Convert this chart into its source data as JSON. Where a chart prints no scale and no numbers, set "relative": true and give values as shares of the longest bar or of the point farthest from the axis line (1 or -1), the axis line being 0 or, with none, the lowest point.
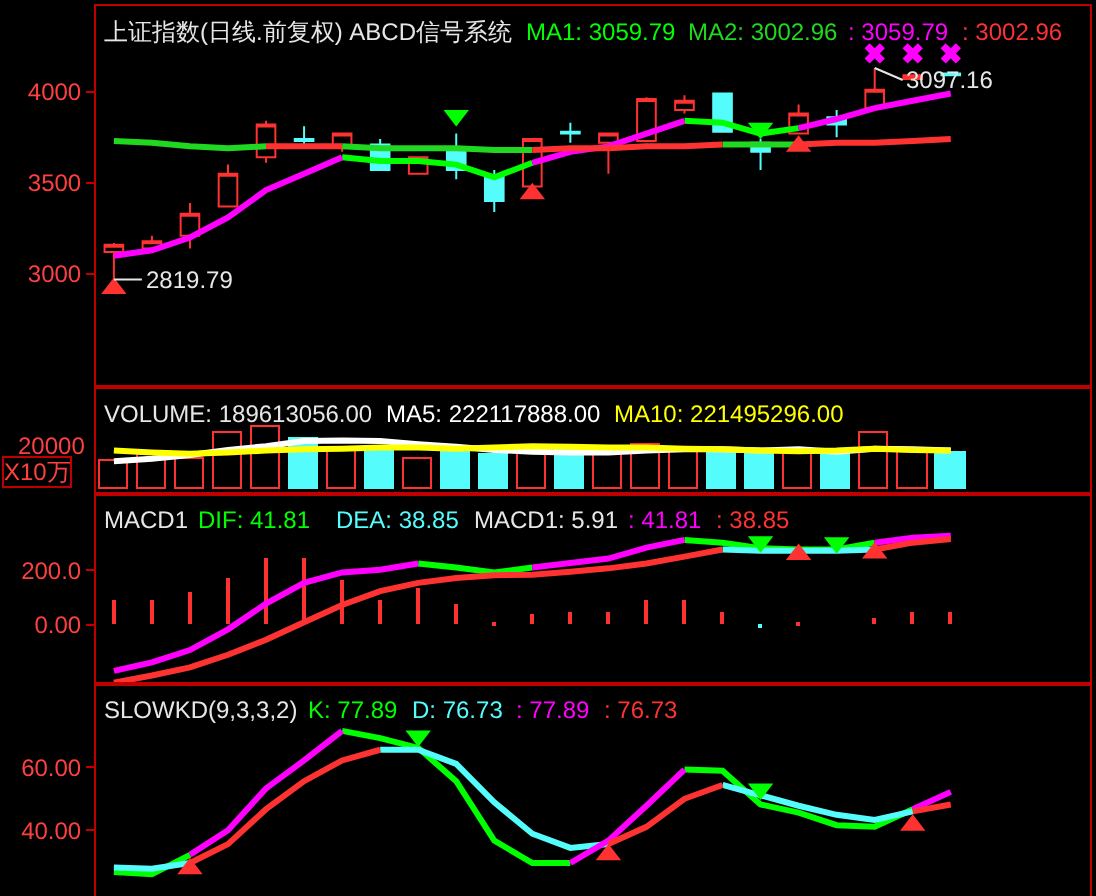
{
  "chart_data": [
    {
      "type": "candlestick",
      "title": "上证指数(日线.前复权) ABCD信号系统",
      "categories": [
        null,
        null,
        null,
        null,
        null,
        null,
        null,
        null,
        null,
        null,
        null,
        null,
        null,
        null,
        null,
        null,
        null,
        null,
        null,
        null,
        null,
        null,
        null
      ],
      "ohlc": [
        [
          3120,
          3170,
          2970,
          3160
        ],
        [
          3140,
          3210,
          3130,
          3180
        ],
        [
          3210,
          3390,
          3140,
          3330
        ],
        [
          3370,
          3600,
          3370,
          3550
        ],
        [
          3640,
          3840,
          3610,
          3820
        ],
        [
          3740,
          3810,
          3690,
          3730
        ],
        [
          3700,
          3770,
          3670,
          3770
        ],
        [
          3710,
          3740,
          3570,
          3570
        ],
        [
          3550,
          3640,
          3550,
          3640
        ],
        [
          3680,
          3770,
          3520,
          3570
        ],
        [
          3540,
          3570,
          3340,
          3400
        ],
        [
          3480,
          3740,
          3480,
          3740
        ],
        [
          3780,
          3830,
          3720,
          3770
        ],
        [
          3720,
          3770,
          3550,
          3770
        ],
        [
          3730,
          3970,
          3730,
          3960
        ],
        [
          3900,
          3980,
          3880,
          3950
        ],
        [
          3990,
          3990,
          3780,
          3780
        ],
        [
          3720,
          3740,
          3570,
          3670
        ],
        [
          3770,
          3930,
          3770,
          3880
        ],
        [
          3860,
          3900,
          3750,
          3820
        ],
        [
          3910,
          4130,
          3910,
          4010
        ],
        [
          4070,
          4090,
          4070,
          4090
        ],
        [
          4100,
          4100,
          4090,
          4090
        ]
      ],
      "colors": [
        "#ff3232",
        "#ff3232",
        "#ff3232",
        "#ff3232",
        "#ff3232",
        "#54fcfc",
        "#ff3232",
        "#54fcfc",
        "#ff3232",
        "#54fcfc",
        "#54fcfc",
        "#ff3232",
        "#54fcfc",
        "#ff3232",
        "#ff3232",
        "#ff3232",
        "#54fcfc",
        "#54fcfc",
        "#ff3232",
        "#54fcfc",
        "#ff3232",
        "#ff3232",
        "#54fcfc"
      ],
      "ylim": [
        2380,
        4470
      ],
      "yticks": [
        3000,
        3500,
        4000
      ],
      "tick_labels": "y",
      "series": [
        {
          "type": "line",
          "name": "MA1: 3059.79",
          "color": "#00ff00",
          "values": [
            null,
            null,
            null,
            null,
            null,
            null,
            3640,
            3620,
            3620,
            3600,
            3530,
            3610,
            null,
            null,
            null,
            3840,
            3830,
            3770,
            3800,
            null,
            null,
            null,
            null
          ]
        },
        {
          "type": "line",
          "name": "MA2: 3002.96",
          "color": "#20d820",
          "values": [
            3730,
            3720,
            3700,
            3690,
            3700,
            null,
            3700,
            3690,
            3690,
            3690,
            3680,
            3680,
            null,
            null,
            null,
            null,
            3710,
            3710,
            3710,
            null,
            null,
            null,
            null
          ]
        },
        {
          "type": "line",
          "name": ": 3059.79",
          "color": "#ff00ff",
          "values": [
            3100,
            3130,
            3200,
            3310,
            3460,
            3550,
            3640,
            null,
            null,
            null,
            null,
            3610,
            3670,
            3700,
            3770,
            3840,
            null,
            null,
            3800,
            3850,
            3910,
            3950,
            3990
          ]
        },
        {
          "type": "line",
          "name": ": 3002.96",
          "color": "#ff3232",
          "values": [
            null,
            null,
            null,
            null,
            3700,
            3700,
            3700,
            null,
            null,
            null,
            null,
            3680,
            3690,
            3690,
            3700,
            3700,
            3710,
            null,
            3710,
            3720,
            3720,
            3730,
            3740
          ]
        },
        {
          "type": "scatter",
          "marker": "triangle",
          "color": "#ff3232",
          "values": [
            2920,
            null,
            null,
            null,
            null,
            null,
            null,
            null,
            null,
            null,
            null,
            3440,
            null,
            null,
            null,
            null,
            null,
            null,
            3700,
            null,
            null,
            null,
            null
          ]
        },
        {
          "type": "scatter",
          "marker": "triangle",
          "color": "#00ff00",
          "values": [
            null,
            null,
            null,
            null,
            null,
            null,
            null,
            null,
            null,
            3870,
            null,
            null,
            null,
            null,
            null,
            null,
            null,
            3800,
            null,
            null,
            null,
            null,
            null
          ]
        },
        {
          "type": "scatter",
          "marker": "cross",
          "color": "#ff00ff",
          "values": [
            null,
            null,
            null,
            null,
            null,
            null,
            null,
            null,
            null,
            null,
            null,
            null,
            null,
            null,
            null,
            null,
            null,
            null,
            null,
            null,
            4210,
            4210,
            4210
          ]
        }
      ],
      "annotations": [
        "2819.79",
        "3097.16"
      ]
    },
    {
      "type": "bar",
      "title": "VOLUME: 189613056.00",
      "ylabel": "X10万",
      "relative": true,
      "tick_labels": false,
      "categories": [
        null,
        null,
        null,
        null,
        null,
        null,
        null,
        null,
        null,
        null,
        null,
        null,
        null,
        null,
        null,
        null,
        null,
        null,
        null,
        null,
        null,
        null,
        null
      ],
      "series": [
        {
          "type": "bar",
          "colors": [
            "#ff3232",
            "#ff3232",
            "#ff3232",
            "#ff3232",
            "#ff3232",
            "#54fcfc",
            "#ff3232",
            "#54fcfc",
            "#ff3232",
            "#54fcfc",
            "#54fcfc",
            "#ff3232",
            "#54fcfc",
            "#ff3232",
            "#ff3232",
            "#ff3232",
            "#54fcfc",
            "#54fcfc",
            "#ff3232",
            "#54fcfc",
            "#ff3232",
            "#ff3232",
            "#54fcfc"
          ],
          "values": [
            0.46,
            0.53,
            0.49,
            0.9,
            1.0,
            0.78,
            0.62,
            0.68,
            0.49,
            0.61,
            0.53,
            0.59,
            0.62,
            0.59,
            0.71,
            0.6,
            0.62,
            0.53,
            0.62,
            0.53,
            0.88,
            0.59,
            0.57
          ]
        },
        {
          "type": "line",
          "name": "MA5: 222117888.00",
          "color": "#ffffff",
          "values": [
            0.44,
            0.48,
            0.54,
            0.62,
            0.68,
            0.76,
            0.77,
            0.76,
            0.71,
            0.67,
            0.62,
            0.59,
            0.58,
            0.58,
            0.61,
            0.63,
            0.63,
            0.61,
            0.63,
            0.59,
            0.64,
            0.63,
            0.61
          ]
        },
        {
          "type": "line",
          "name": "MA10: 221495296.00",
          "color": "#ffff00",
          "values": [
            0.61,
            0.58,
            0.56,
            0.58,
            0.61,
            0.63,
            0.64,
            0.66,
            0.66,
            0.64,
            0.66,
            0.68,
            0.67,
            0.66,
            0.66,
            0.64,
            0.63,
            0.61,
            0.6,
            0.61,
            0.64,
            0.62,
            0.61
          ]
        }
      ],
      "annotations": [
        "20000"
      ]
    },
    {
      "type": "line",
      "title": "MACD1",
      "tick_labels": "y",
      "categories": [
        null,
        null,
        null,
        null,
        null,
        null,
        null,
        null,
        null,
        null,
        null,
        null,
        null,
        null,
        null,
        null,
        null,
        null,
        null,
        null,
        null,
        null,
        null
      ],
      "ylim": [
        -216,
        479
      ],
      "yticks": [
        {
          "value": 200,
          "label": "200.0"
        },
        {
          "value": 0,
          "label": "0.00"
        }
      ],
      "series": [
        {
          "type": "bar",
          "colors": [
            "#ff3232",
            "#ff3232",
            "#ff3232",
            "#ff3232",
            "#ff3232",
            "#ff3232",
            "#ff3232",
            "#ff3232",
            "#ff3232",
            "#ff3232",
            "#ff3232",
            "#ff3232",
            "#ff3232",
            "#ff3232",
            "#ff3232",
            "#ff3232",
            "#ff3232",
            "#54fcfc",
            "#ff3232",
            "#ff3232",
            "#ff3232",
            "#ff3232",
            "#ff3232"
          ],
          "values": [
            89,
            94,
            124,
            175,
            248,
            246,
            165,
            89,
            132,
            76,
            13,
            38,
            51,
            51,
            89,
            89,
            46,
            -5,
            5,
            0,
            25,
            46,
            46
          ]
        },
        {
          "type": "line",
          "name": "DIF: 41.81",
          "color": "#00ff00",
          "values": [
            null,
            null,
            null,
            null,
            null,
            null,
            null,
            null,
            225,
            210,
            192,
            210,
            null,
            null,
            null,
            311,
            301,
            281,
            276,
            276,
            301,
            null,
            null
          ]
        },
        {
          "type": "line",
          "name": "DEA: 38.85",
          "color": "#54fcfc",
          "values": [
            null,
            null,
            null,
            null,
            null,
            null,
            null,
            null,
            null,
            null,
            null,
            null,
            null,
            null,
            null,
            null,
            276,
            271,
            271,
            271,
            276,
            null,
            null
          ]
        },
        {
          "type": "line",
          "name": ": 41.81",
          "color": "#ff00ff",
          "values": [
            -168,
            -137,
            -92,
            -16,
            78,
            154,
            192,
            202,
            225,
            null,
            null,
            210,
            227,
            243,
            283,
            311,
            null,
            null,
            null,
            null,
            301,
            319,
            326
          ]
        },
        {
          "type": "line",
          "name": ": 38.85",
          "color": "#ff3232",
          "values": [
            -211,
            -185,
            -155,
            -109,
            -54,
            10,
            73,
            124,
            154,
            172,
            182,
            184,
            195,
            207,
            225,
            250,
            276,
            null,
            null,
            null,
            276,
            301,
            314
          ]
        },
        {
          "type": "scatter",
          "marker": "triangle",
          "color": "#ff3232",
          "values": [
            null,
            null,
            null,
            null,
            null,
            null,
            null,
            null,
            null,
            null,
            null,
            null,
            null,
            null,
            null,
            null,
            null,
            null,
            258,
            null,
            263,
            null,
            null
          ]
        },
        {
          "type": "scatter",
          "marker": "triangle",
          "color": "#00ff00",
          "values": [
            null,
            null,
            null,
            null,
            null,
            null,
            null,
            null,
            null,
            null,
            null,
            null,
            null,
            null,
            null,
            null,
            null,
            304,
            null,
            301,
            null,
            null,
            null
          ]
        }
      ],
      "annotations": [
        "MACD1: 5.91"
      ]
    },
    {
      "type": "line",
      "title": "SLOWKD(9,3,3,2)",
      "tick_labels": "y",
      "categories": [
        null,
        null,
        null,
        null,
        null,
        null,
        null,
        null,
        null,
        null,
        null,
        null,
        null,
        null,
        null,
        null,
        null,
        null,
        null,
        null,
        null,
        null,
        null
      ],
      "ylim": [
        19.1,
        86.5
      ],
      "yticks": [
        {
          "value": 60,
          "label": "60.00"
        },
        {
          "value": 40,
          "label": "40.00"
        }
      ],
      "series": [
        {
          "type": "line",
          "name": "K: 77.89",
          "color": "#00ff00",
          "values": [
            26.7,
            26.0,
            32.2,
            null,
            null,
            null,
            71.6,
            69.3,
            66.2,
            55.6,
            36.7,
            29.6,
            29.6,
            null,
            null,
            59.3,
            58.9,
            48.2,
            45.6,
            41.6,
            41.1,
            46.7,
            null
          ]
        },
        {
          "type": "line",
          "name": "D: 76.73",
          "color": "#54fcfc",
          "values": [
            28.2,
            27.8,
            29.6,
            null,
            null,
            null,
            null,
            65.6,
            65.6,
            61.1,
            48.9,
            38.9,
            34.4,
            35.6,
            null,
            null,
            54.4,
            51.1,
            47.8,
            44.9,
            43.3,
            46.0,
            null
          ]
        },
        {
          "type": "line",
          "name": ": 77.89",
          "color": "#ff00ff",
          "values": [
            null,
            null,
            32.2,
            40.0,
            53.3,
            62.2,
            71.6,
            null,
            null,
            null,
            null,
            null,
            29.6,
            36.7,
            47.8,
            59.3,
            null,
            null,
            null,
            null,
            null,
            46.7,
            52.2
          ]
        },
        {
          "type": "line",
          "name": ": 76.73",
          "color": "#ff3232",
          "values": [
            null,
            null,
            29.6,
            35.6,
            46.7,
            55.6,
            62.2,
            65.6,
            null,
            null,
            null,
            null,
            null,
            35.6,
            41.1,
            50.0,
            54.4,
            null,
            null,
            null,
            null,
            46.0,
            48.2
          ]
        },
        {
          "type": "scatter",
          "marker": "triangle",
          "color": "#ff3232",
          "values": [
            null,
            null,
            27.8,
            null,
            null,
            null,
            null,
            null,
            null,
            null,
            null,
            null,
            null,
            32.2,
            null,
            null,
            null,
            null,
            null,
            null,
            null,
            41.6,
            null
          ]
        },
        {
          "type": "scatter",
          "marker": "triangle",
          "color": "#00ff00",
          "values": [
            null,
            null,
            null,
            null,
            null,
            null,
            null,
            null,
            70.0,
            null,
            null,
            null,
            null,
            null,
            null,
            null,
            null,
            53.1,
            null,
            null,
            null,
            null,
            null
          ]
        }
      ]
    }
  ]
}
